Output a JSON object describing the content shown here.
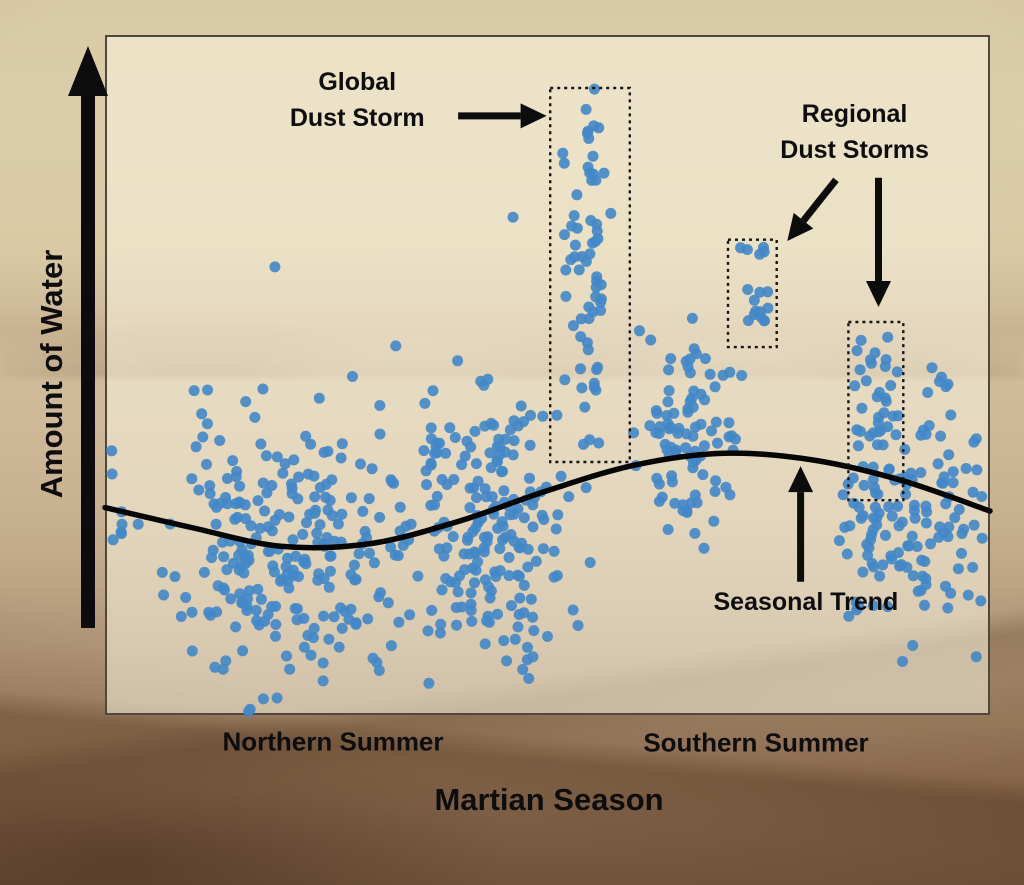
{
  "chart_data": {
    "type": "scatter",
    "title": "",
    "xlabel": "Martian Season",
    "ylabel": "Amount of Water",
    "x_axis": {
      "numeric": false,
      "tick_labels": [
        "Northern Summer",
        "Southern Summer"
      ]
    },
    "y_axis": {
      "numeric": false,
      "style": "upward-arrow"
    },
    "legend": "none",
    "grid": false,
    "point_color": "#4287c7",
    "point_radius": 5.5,
    "trend_color": "#050505",
    "seasonal_trend": [
      [
        0.0,
        0.305
      ],
      [
        0.1,
        0.275
      ],
      [
        0.2,
        0.248
      ],
      [
        0.3,
        0.252
      ],
      [
        0.4,
        0.285
      ],
      [
        0.5,
        0.33
      ],
      [
        0.6,
        0.368
      ],
      [
        0.7,
        0.385
      ],
      [
        0.8,
        0.375
      ],
      [
        0.9,
        0.345
      ],
      [
        1.0,
        0.3
      ]
    ],
    "clusters": [
      {
        "name": "northern-summer-early",
        "cx": 0.2,
        "cy": 0.24,
        "sx": 0.065,
        "sy": 0.105,
        "count": 230,
        "seed": 11,
        "clip": [
          0.055,
          0.335,
          0.005,
          0.525
        ]
      },
      {
        "name": "northern-summer-late",
        "cx": 0.425,
        "cy": 0.285,
        "sx": 0.055,
        "sy": 0.1,
        "count": 210,
        "seed": 22,
        "clip": [
          0.3,
          0.56,
          0.01,
          0.545
        ]
      },
      {
        "name": "global-dust-storm-spike",
        "cx": 0.546,
        "cy": 0.7,
        "sx": 0.013,
        "sy": 0.16,
        "count": 65,
        "seed": 33,
        "clip": [
          0.515,
          0.578,
          0.36,
          0.925
        ]
      },
      {
        "name": "southern-summer-rise",
        "cx": 0.655,
        "cy": 0.4,
        "sx": 0.03,
        "sy": 0.075,
        "count": 90,
        "seed": 44,
        "clip": [
          0.585,
          0.72,
          0.22,
          0.6
        ]
      },
      {
        "name": "regional-storm-1",
        "cx": 0.731,
        "cy": 0.622,
        "sx": 0.01,
        "sy": 0.048,
        "count": 17,
        "seed": 55,
        "clip": [
          0.712,
          0.75,
          0.548,
          0.692
        ]
      },
      {
        "name": "regional-storm-2",
        "cx": 0.868,
        "cy": 0.45,
        "sx": 0.014,
        "sy": 0.082,
        "count": 26,
        "seed": 66,
        "clip": [
          0.845,
          0.895,
          0.322,
          0.572
        ]
      },
      {
        "name": "southern-summer-peak",
        "cx": 0.905,
        "cy": 0.3,
        "sx": 0.047,
        "sy": 0.1,
        "count": 140,
        "seed": 77,
        "clip": [
          0.8,
          0.998,
          0.07,
          0.52
        ]
      },
      {
        "name": "left-edge",
        "cx": 0.012,
        "cy": 0.3,
        "sx": 0.012,
        "sy": 0.045,
        "count": 8,
        "seed": 88,
        "clip": [
          0.0,
          0.045,
          0.2,
          0.4
        ]
      }
    ],
    "outlier_points": [
      [
        0.192,
        0.659
      ],
      [
        0.461,
        0.732
      ],
      [
        0.604,
        0.565
      ]
    ],
    "storm_boxes": [
      {
        "label": "Global Dust Storm",
        "x0": 0.503,
        "x1": 0.593,
        "y0": 0.372,
        "y1": 0.922
      },
      {
        "label": "Regional Dust Storm 1",
        "x0": 0.704,
        "x1": 0.759,
        "y0": 0.541,
        "y1": 0.699
      },
      {
        "label": "Regional Dust Storm 2",
        "x0": 0.84,
        "x1": 0.902,
        "y0": 0.316,
        "y1": 0.578
      }
    ],
    "annotations": [
      {
        "id": "global-dust-storm",
        "text": "Global\nDust Storm",
        "x": 0.285,
        "y": 0.905,
        "arrows": [
          {
            "from": [
              0.399,
              0.881
            ],
            "to": [
              0.499,
              0.881
            ]
          }
        ]
      },
      {
        "id": "regional-dust-storms",
        "text": "Regional\nDust Storms",
        "x": 0.847,
        "y": 0.858,
        "arrows": [
          {
            "from": [
              0.826,
              0.787
            ],
            "to": [
              0.771,
              0.697
            ]
          },
          {
            "from": [
              0.874,
              0.79
            ],
            "to": [
              0.874,
              0.6
            ]
          }
        ]
      },
      {
        "id": "seasonal-trend",
        "text": "Seasonal Trend",
        "x": 0.792,
        "y": 0.166,
        "arrows": [
          {
            "from": [
              0.786,
              0.196
            ],
            "to": [
              0.786,
              0.366
            ]
          }
        ]
      }
    ]
  }
}
